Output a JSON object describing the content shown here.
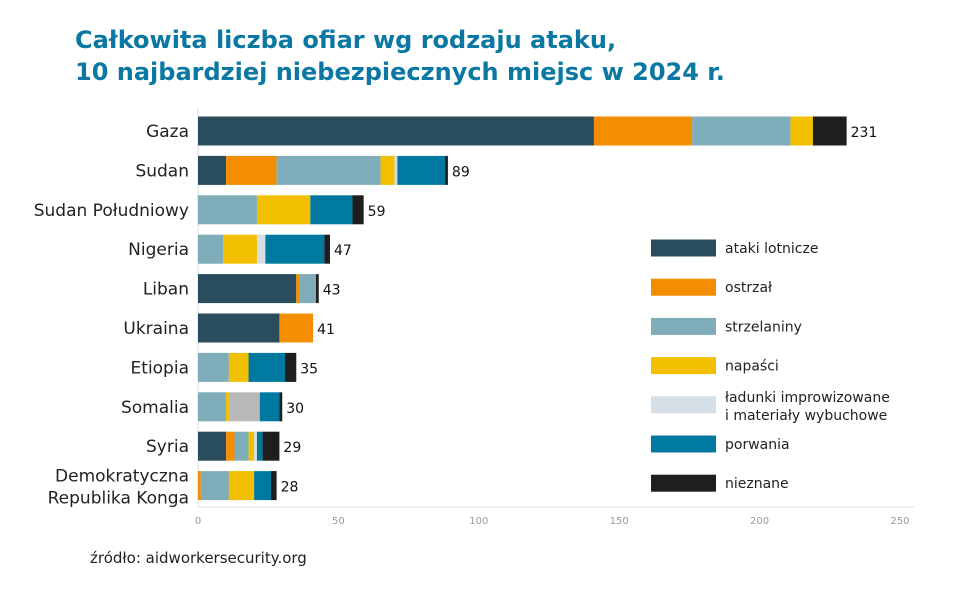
{
  "chart_data": {
    "type": "bar",
    "orientation": "horizontal",
    "stacked": true,
    "title_line1": "Całkowita liczba ofiar wg rodzaju ataku,",
    "title_line2": "10 najbardziej niebezpiecznych miejsc w 2024 r.",
    "source": "źródło: aidworkersecurity.org",
    "categories": [
      "Gaza",
      "Sudan",
      "Sudan Południowy",
      "Nigeria",
      "Liban",
      "Ukraina",
      "Etiopia",
      "Somalia",
      "Syria",
      "Demokratyczna Republika Konga"
    ],
    "totals": [
      231,
      89,
      59,
      47,
      43,
      41,
      35,
      30,
      29,
      28
    ],
    "xlim": [
      0,
      250
    ],
    "xticks": [
      0,
      50,
      100,
      150,
      200,
      250
    ],
    "legend_position": "right",
    "series": [
      {
        "name": "ataki lotnicze",
        "color": "#2a4d5e",
        "values": [
          141,
          10,
          0,
          0,
          35,
          29,
          0,
          0,
          10,
          0
        ]
      },
      {
        "name": "ostrzał",
        "color": "#f28e00",
        "values": [
          35,
          18,
          0,
          0,
          1,
          12,
          0,
          0,
          3,
          1
        ]
      },
      {
        "name": "strzelaniny",
        "color": "#7fadba",
        "values": [
          35,
          37,
          21,
          9,
          6,
          0,
          11,
          10,
          5,
          10
        ]
      },
      {
        "name": "napaści",
        "color": "#f2c000",
        "values": [
          8,
          5,
          19,
          12,
          0,
          0,
          7,
          1,
          2,
          9
        ]
      },
      {
        "name": "ładunki improwizowane i materiały wybuchowe",
        "color": "#d6dee7",
        "values": [
          0,
          1,
          0,
          3,
          0,
          0,
          0,
          0,
          1,
          0
        ]
      },
      {
        "name": "",
        "color": "#b9b9b9",
        "legend": false,
        "values": [
          0,
          0,
          0,
          0,
          0,
          0,
          0,
          11,
          0,
          0
        ]
      },
      {
        "name": "porwania",
        "color": "#0079a1",
        "values": [
          0,
          17,
          15,
          21,
          0,
          0,
          13,
          7,
          2,
          6
        ]
      },
      {
        "name": "nieznane",
        "color": "#1e1e1e",
        "values": [
          12,
          1,
          4,
          2,
          1,
          0,
          4,
          1,
          6,
          2
        ]
      }
    ]
  }
}
